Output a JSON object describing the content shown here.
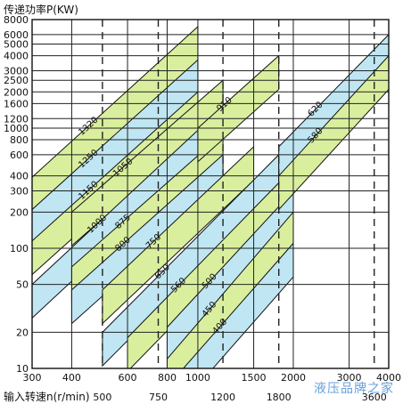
{
  "chart_data": {
    "type": "line",
    "title": "",
    "ylabel": "传递功率P(KW)",
    "xlabel": "输入转速n(r/min)",
    "x_scale": "log",
    "y_scale": "log",
    "xlim": [
      300,
      4000
    ],
    "ylim": [
      10,
      8000
    ],
    "y_ticks": [
      10,
      20,
      50,
      100,
      200,
      300,
      400,
      600,
      800,
      1000,
      1200,
      1600,
      2000,
      2500,
      3000,
      4000,
      5000,
      6000,
      8000
    ],
    "y_tick_labels": [
      "10",
      "20",
      "50",
      "100",
      "200",
      "300",
      "400",
      "600",
      "800",
      "1000",
      "1200",
      "1600",
      "2000",
      "2500",
      "3000",
      "4000",
      "5000",
      "6000",
      "8000"
    ],
    "x_ticks_top": [
      300,
      400,
      600,
      800,
      1000,
      1500,
      2000,
      3000,
      4000
    ],
    "x_tick_labels_top": [
      "300",
      "400",
      "600",
      "800",
      "1000",
      "1500",
      "2000",
      "3000",
      "4000"
    ],
    "x_ticks_bottom": [
      500,
      750,
      1200,
      1800,
      3600
    ],
    "x_tick_labels_bottom": [
      "500",
      "750",
      "1200",
      "1800",
      "3600"
    ],
    "dashed_x": [
      500,
      750,
      1200,
      1800,
      3600
    ],
    "series": [
      {
        "name": "1320",
        "fill": "green",
        "x": [
          300,
          1000
        ],
        "y": [
          390,
          7000
        ]
      },
      {
        "name": "1250",
        "fill": "blue",
        "x": [
          300,
          1000
        ],
        "y": [
          210,
          3700
        ]
      },
      {
        "name": "1150",
        "fill": "green",
        "x": [
          300,
          1000
        ],
        "y": [
          115,
          2000
        ]
      },
      {
        "name": "1050",
        "fill": "green",
        "x": [
          400,
          1200
        ],
        "y": [
          200,
          2500
        ]
      },
      {
        "name": "1000",
        "fill": "blue",
        "x": [
          300,
          1200
        ],
        "y": [
          50,
          1500
        ]
      },
      {
        "name": "875",
        "fill": "green",
        "x": [
          400,
          1200
        ],
        "y": [
          70,
          900
        ]
      },
      {
        "name": "800",
        "fill": "blue",
        "x": [
          400,
          1200
        ],
        "y": [
          45,
          600
        ]
      },
      {
        "name": "750",
        "fill": "green",
        "x": [
          500,
          1500
        ],
        "y": [
          45,
          700
        ]
      },
      {
        "name": "910",
        "fill": "green",
        "x": [
          1000,
          1800
        ],
        "y": [
          1000,
          4000
        ]
      },
      {
        "name": "650",
        "fill": "blue",
        "x": [
          500,
          1800
        ],
        "y": [
          20,
          600
        ]
      },
      {
        "name": "560",
        "fill": "green",
        "x": [
          600,
          1800
        ],
        "y": [
          18,
          350
        ]
      },
      {
        "name": "500",
        "fill": "blue",
        "x": [
          800,
          2000
        ],
        "y": [
          22,
          300
        ]
      },
      {
        "name": "450",
        "fill": "green",
        "x": [
          800,
          2000
        ],
        "y": [
          12,
          200
        ]
      },
      {
        "name": "400",
        "fill": "blue",
        "x": [
          900,
          2000
        ],
        "y": [
          10,
          110
        ]
      },
      {
        "name": "620",
        "fill": "blue",
        "x": [
          1800,
          4000
        ],
        "y": [
          700,
          6000
        ]
      },
      {
        "name": "580",
        "fill": "green",
        "x": [
          1800,
          4000
        ],
        "y": [
          400,
          4000
        ]
      }
    ],
    "band_labels": [
      "1320",
      "1250",
      "1150",
      "1050",
      "1000",
      "875",
      "800",
      "750",
      "910",
      "650",
      "560",
      "500",
      "450",
      "400",
      "620",
      "580"
    ],
    "colors": {
      "green": "#d9ef9e",
      "blue": "#bfe6f2",
      "grid": "#222222",
      "grey": "#c8c8c8"
    },
    "grid": true
  },
  "watermark": "液压品牌之家"
}
